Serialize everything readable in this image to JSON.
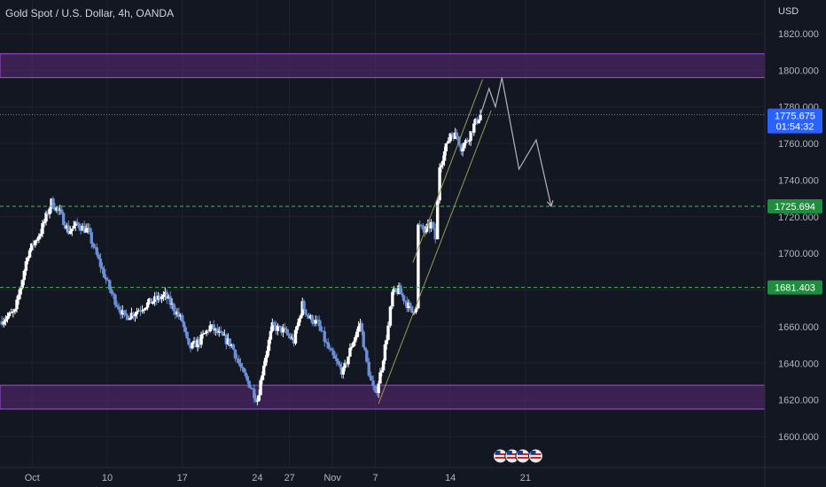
{
  "header": {
    "title": "Gold Spot / U.S. Dollar, 4h, OANDA"
  },
  "currency": "USD",
  "colors": {
    "background": "#131722",
    "grid": "#1e2230",
    "bull": "#ffffff",
    "bear": "#6b8fd6",
    "zone_fill": "#5b2a78",
    "zone_border": "#a14ed9",
    "level_line": "#3fb950",
    "level_label_bg": "#1e8e3e",
    "price_label_bg": "#2962ff",
    "channel": "#9a9a55",
    "projection": "#b2b5be",
    "axis_text": "#b2b5be"
  },
  "chart_data": {
    "type": "candlestick",
    "title": "Gold Spot / U.S. Dollar, 4h, OANDA",
    "ylabel": "USD",
    "ylim": [
      1586,
      1830
    ],
    "y_ticks": [
      1600,
      1620,
      1640,
      1660,
      1680,
      1700,
      1720,
      1740,
      1760,
      1780,
      1800,
      1820
    ],
    "y_tick_labels": [
      "1600.000",
      "1620.000",
      "1640.000",
      "1660.000",
      "1680.000",
      "1700.000",
      "1720.000",
      "1740.000",
      "1760.000",
      "1780.000",
      "1800.000",
      "1820.000"
    ],
    "x_ticks": [
      {
        "label": "Oct",
        "day": 3
      },
      {
        "label": "10",
        "day": 10
      },
      {
        "label": "17",
        "day": 17
      },
      {
        "label": "24",
        "day": 24
      },
      {
        "label": "27",
        "day": 27
      },
      {
        "label": "Nov",
        "day": 31
      },
      {
        "label": "7",
        "day": 35
      },
      {
        "label": "14",
        "day": 42
      },
      {
        "label": "21",
        "day": 49
      }
    ],
    "waypoints": [
      [
        0,
        1663
      ],
      [
        1.4,
        1668
      ],
      [
        2.6,
        1700
      ],
      [
        3.8,
        1712
      ],
      [
        4.8,
        1728
      ],
      [
        5.6,
        1722
      ],
      [
        6.4,
        1712
      ],
      [
        7.2,
        1716
      ],
      [
        8.2,
        1712
      ],
      [
        9.2,
        1696
      ],
      [
        10.4,
        1678
      ],
      [
        11.6,
        1665
      ],
      [
        12.6,
        1668
      ],
      [
        13.6,
        1672
      ],
      [
        14.6,
        1675
      ],
      [
        15.4,
        1677
      ],
      [
        16.2,
        1670
      ],
      [
        17.0,
        1663
      ],
      [
        17.6,
        1648
      ],
      [
        18.6,
        1652
      ],
      [
        19.6,
        1660
      ],
      [
        20.6,
        1655
      ],
      [
        21.6,
        1650
      ],
      [
        22.6,
        1635
      ],
      [
        23.4,
        1627
      ],
      [
        24.0,
        1620
      ],
      [
        24.6,
        1640
      ],
      [
        25.4,
        1660
      ],
      [
        26.4,
        1658
      ],
      [
        27.4,
        1652
      ],
      [
        28.2,
        1672
      ],
      [
        28.8,
        1665
      ],
      [
        29.6,
        1662
      ],
      [
        30.6,
        1648
      ],
      [
        31.4,
        1640
      ],
      [
        32.0,
        1635
      ],
      [
        32.8,
        1650
      ],
      [
        33.6,
        1662
      ],
      [
        34.2,
        1640
      ],
      [
        34.6,
        1630
      ],
      [
        35.0,
        1622
      ],
      [
        35.6,
        1638
      ],
      [
        36.2,
        1660
      ],
      [
        36.6,
        1678
      ],
      [
        37.2,
        1680
      ],
      [
        37.8,
        1674
      ],
      [
        38.4,
        1668
      ],
      [
        38.8,
        1672
      ],
      [
        39.0,
        1715
      ],
      [
        39.6,
        1712
      ],
      [
        40.2,
        1716
      ],
      [
        40.6,
        1708
      ],
      [
        41.0,
        1748
      ],
      [
        41.6,
        1758
      ],
      [
        42.0,
        1766
      ],
      [
        42.6,
        1764
      ],
      [
        43.0,
        1758
      ],
      [
        43.6,
        1762
      ],
      [
        44.2,
        1770
      ],
      [
        44.8,
        1775.675
      ]
    ],
    "supply_zone": {
      "low": 1796,
      "high": 1809
    },
    "demand_zone": {
      "low": 1615,
      "high": 1628
    },
    "levels": [
      {
        "price": 1725.694,
        "label": "1725.694"
      },
      {
        "price": 1681.403,
        "label": "1681.403"
      }
    ],
    "channel": {
      "lower": [
        [
          35.3,
          1618
        ],
        [
          45.8,
          1778
        ]
      ],
      "upper": [
        [
          38.5,
          1695
        ],
        [
          45.0,
          1795
        ]
      ]
    },
    "projection": [
      [
        44.8,
        1775.675
      ],
      [
        45.6,
        1790
      ],
      [
        46.2,
        1780
      ],
      [
        46.8,
        1796
      ],
      [
        48.4,
        1746
      ],
      [
        50.0,
        1762
      ],
      [
        51.4,
        1725.694
      ]
    ],
    "current_price": {
      "price": 1775.675,
      "label": "1775.675",
      "countdown": "01:54:32"
    },
    "price_line": 1775.675,
    "events": {
      "count": 4,
      "days": [
        45.5,
        46.6,
        47.6,
        48.8
      ]
    }
  }
}
